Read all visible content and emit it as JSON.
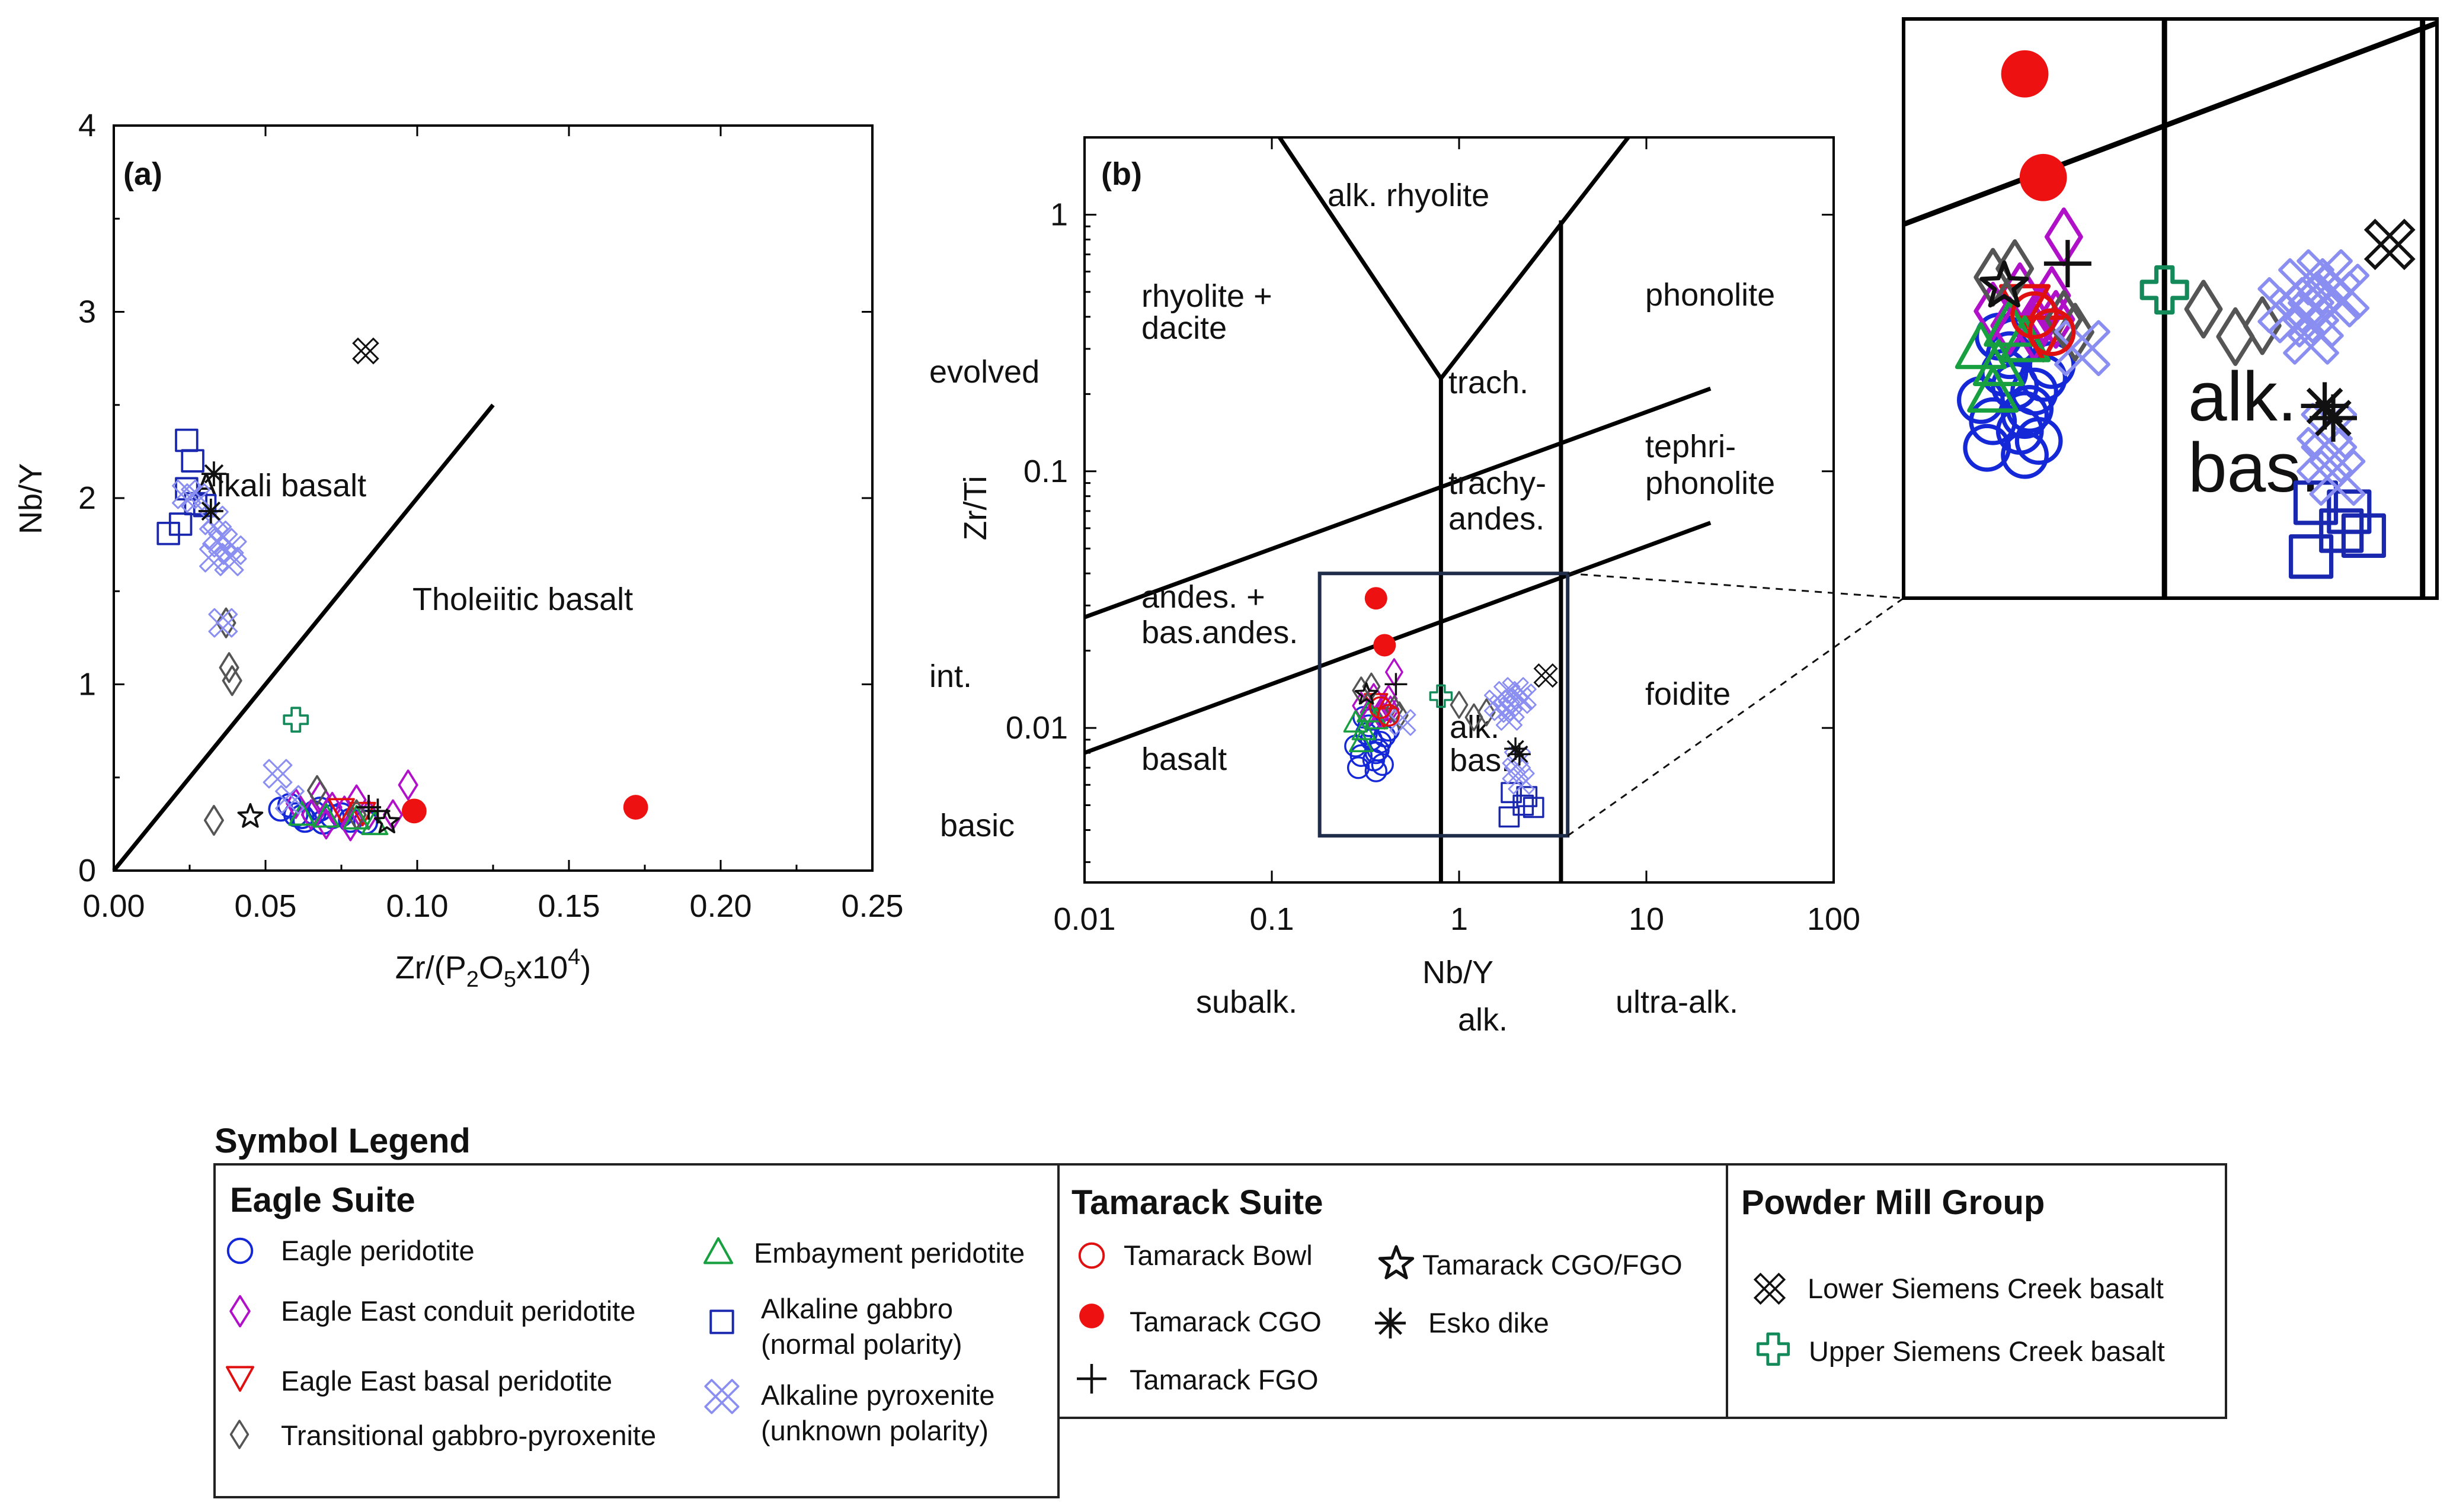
{
  "colors": {
    "eagle_peridotite": "#1428d8",
    "eagle_east_conduit": "#b010c8",
    "eagle_east_basal": "#e01010",
    "transitional": "#555555",
    "embayment": "#18a040",
    "alk_gabbro": "#1a28b0",
    "alk_pyroxenite": "#8a8ef0",
    "tamarack_bowl": "#e01010",
    "tamarack_cgo": "#ee1111",
    "black": "#111111",
    "upper_siemens": "#148a5a",
    "inset_box": "#1f2d4a"
  },
  "chart_data": [
    {
      "panel": "(a)",
      "type": "scatter",
      "xlabel": "Zr/(P2O5x10^4)",
      "ylabel": "Nb/Y",
      "xlim": [
        0,
        0.25
      ],
      "ylim": [
        0,
        4
      ],
      "xticks": [
        "0.00",
        "0.05",
        "0.10",
        "0.15",
        "0.20",
        "0.25"
      ],
      "yticks": [
        "0",
        "1",
        "2",
        "3",
        "4"
      ],
      "divider_line": [
        [
          0,
          0
        ],
        [
          0.125,
          2.5
        ]
      ],
      "region_labels": [
        "Alkali basalt",
        "Tholeiitic basalt"
      ],
      "series": [
        {
          "name": "Eagle peridotite",
          "marker": "circle",
          "points": [
            [
              0.055,
              0.33
            ],
            [
              0.06,
              0.3
            ],
            [
              0.063,
              0.27
            ],
            [
              0.066,
              0.31
            ],
            [
              0.069,
              0.26
            ],
            [
              0.072,
              0.29
            ],
            [
              0.075,
              0.3
            ],
            [
              0.078,
              0.27
            ],
            [
              0.083,
              0.26
            ],
            [
              0.058,
              0.35
            ],
            [
              0.068,
              0.33
            ],
            [
              0.062,
              0.29
            ]
          ]
        },
        {
          "name": "Eagle East conduit peridotite",
          "marker": "diamond",
          "points": [
            [
              0.06,
              0.36
            ],
            [
              0.065,
              0.3
            ],
            [
              0.068,
              0.4
            ],
            [
              0.072,
              0.34
            ],
            [
              0.076,
              0.32
            ],
            [
              0.08,
              0.38
            ],
            [
              0.084,
              0.3
            ],
            [
              0.092,
              0.3
            ],
            [
              0.097,
              0.46
            ],
            [
              0.07,
              0.25
            ],
            [
              0.078,
              0.24
            ]
          ]
        },
        {
          "name": "Eagle East basal peridotite",
          "marker": "triangle-down",
          "points": [
            [
              0.075,
              0.33
            ],
            [
              0.082,
              0.31
            ]
          ]
        },
        {
          "name": "Transitional gabbro-pyroxenite",
          "marker": "diamond",
          "points": [
            [
              0.033,
              0.27
            ],
            [
              0.037,
              1.33
            ],
            [
              0.038,
              1.09
            ],
            [
              0.039,
              1.02
            ],
            [
              0.067,
              0.43
            ],
            [
              0.08,
              0.3
            ]
          ]
        },
        {
          "name": "Embayment peridotite",
          "marker": "triangle",
          "points": [
            [
              0.062,
              0.3
            ],
            [
              0.07,
              0.29
            ],
            [
              0.08,
              0.28
            ],
            [
              0.086,
              0.25
            ]
          ]
        },
        {
          "name": "Alkaline gabbro (normal polarity)",
          "marker": "square",
          "points": [
            [
              0.024,
              2.31
            ],
            [
              0.026,
              2.2
            ],
            [
              0.024,
              2.05
            ],
            [
              0.027,
              1.97
            ],
            [
              0.018,
              1.81
            ],
            [
              0.022,
              1.86
            ],
            [
              0.03,
              1.96
            ]
          ]
        },
        {
          "name": "Alkaline pyroxenite (unknown polarity)",
          "marker": "xfat",
          "points": [
            [
              0.024,
              2.02
            ],
            [
              0.027,
              2.0
            ],
            [
              0.033,
              1.88
            ],
            [
              0.034,
              1.8
            ],
            [
              0.036,
              1.76
            ],
            [
              0.039,
              1.72
            ],
            [
              0.033,
              1.68
            ],
            [
              0.038,
              1.66
            ],
            [
              0.036,
              1.33
            ],
            [
              0.054,
              0.52
            ],
            [
              0.058,
              0.38
            ]
          ]
        },
        {
          "name": "Tamarack CGO",
          "marker": "dot",
          "points": [
            [
              0.099,
              0.32
            ],
            [
              0.172,
              0.34
            ]
          ]
        },
        {
          "name": "Tamarack FGO",
          "marker": "plus",
          "points": [
            [
              0.084,
              0.34
            ],
            [
              0.087,
              0.32
            ]
          ]
        },
        {
          "name": "Tamarack CGO/FGO",
          "marker": "star",
          "points": [
            [
              0.045,
              0.29
            ],
            [
              0.09,
              0.26
            ]
          ]
        },
        {
          "name": "Esko dike",
          "marker": "asterisk",
          "points": [
            [
              0.033,
              2.13
            ],
            [
              0.032,
              1.93
            ]
          ]
        },
        {
          "name": "Lower Siemens Creek basalt",
          "marker": "xbox",
          "points": [
            [
              0.083,
              2.79
            ]
          ]
        },
        {
          "name": "Upper Siemens Creek basalt",
          "marker": "clover",
          "points": [
            [
              0.06,
              0.81
            ]
          ]
        }
      ]
    },
    {
      "panel": "(b)",
      "type": "scatter",
      "xscale": "log",
      "yscale": "log",
      "xlabel": "Nb/Y",
      "ylabel": "Zr/Ti",
      "xlim": [
        0.01,
        100
      ],
      "ylim": [
        0.0025,
        2
      ],
      "xticks": [
        "0.01",
        "0.1",
        "1",
        "10",
        "100"
      ],
      "yticks": [
        "0.01",
        "0.1",
        "1"
      ],
      "classification_lines": [
        [
          [
            0.01,
            0.027
          ],
          [
            22,
            0.21
          ]
        ],
        [
          [
            0.01,
            0.008
          ],
          [
            22,
            0.063
          ]
        ],
        [
          [
            0.8,
            0.0025
          ],
          [
            0.8,
            0.23
          ]
        ],
        [
          [
            3.5,
            0.0025
          ],
          [
            3.5,
            0.95
          ]
        ],
        [
          [
            0.8,
            0.23
          ],
          [
            0.11,
            2
          ]
        ],
        [
          [
            0.8,
            0.23
          ],
          [
            8,
            2
          ]
        ]
      ],
      "field_labels": [
        "alk. rhyolite",
        "rhyolite +",
        "dacite",
        "trach.",
        "trachy-",
        "andes.",
        "phonolite",
        "tephri-",
        "phonolite",
        "andes. +",
        "bas.andes.",
        "basalt",
        "alk.",
        "bas.",
        "foidite"
      ],
      "side_labels": [
        "evolved",
        "int.",
        "basic"
      ],
      "bottom_labels": [
        "subalk.",
        "alk.",
        "ultra-alk."
      ],
      "series": [
        {
          "name": "Eagle peridotite",
          "marker": "circle",
          "points": [
            [
              0.28,
              0.0085
            ],
            [
              0.32,
              0.0095
            ],
            [
              0.34,
              0.009
            ],
            [
              0.36,
              0.008
            ],
            [
              0.3,
              0.0078
            ],
            [
              0.38,
              0.0088
            ],
            [
              0.33,
              0.0102
            ],
            [
              0.35,
              0.0075
            ],
            [
              0.4,
              0.0093
            ],
            [
              0.31,
              0.011
            ],
            [
              0.37,
              0.0082
            ],
            [
              0.42,
              0.0098
            ],
            [
              0.29,
              0.007
            ],
            [
              0.36,
              0.0068
            ],
            [
              0.39,
              0.0072
            ],
            [
              0.34,
              0.0108
            ]
          ]
        },
        {
          "name": "Eagle East conduit peridotite",
          "marker": "diamond",
          "points": [
            [
              0.3,
              0.0122
            ],
            [
              0.35,
              0.0132
            ],
            [
              0.4,
              0.012
            ],
            [
              0.45,
              0.0165
            ],
            [
              0.38,
              0.0112
            ],
            [
              0.42,
              0.013
            ],
            [
              0.33,
              0.0115
            ],
            [
              0.43,
              0.0118
            ]
          ]
        },
        {
          "name": "Eagle East basal peridotite",
          "marker": "triangle-down",
          "points": [
            [
              0.36,
              0.0125
            ],
            [
              0.4,
              0.011
            ]
          ]
        },
        {
          "name": "Transitional gabbro-pyroxenite",
          "marker": "diamond",
          "points": [
            [
              0.3,
              0.014
            ],
            [
              0.34,
              0.0145
            ],
            [
              0.45,
              0.0118
            ],
            [
              0.48,
              0.0112
            ],
            [
              1.0,
              0.0123
            ],
            [
              1.2,
              0.011
            ],
            [
              1.4,
              0.0115
            ]
          ]
        },
        {
          "name": "Embayment peridotite",
          "marker": "triangle",
          "points": [
            [
              0.28,
              0.0105
            ],
            [
              0.31,
              0.0098
            ],
            [
              0.33,
              0.0115
            ],
            [
              0.36,
              0.0108
            ],
            [
              0.3,
              0.0088
            ]
          ]
        },
        {
          "name": "Alkaline gabbro (normal polarity)",
          "marker": "square",
          "points": [
            [
              1.85,
              0.0045
            ],
            [
              2.2,
              0.005
            ],
            [
              2.3,
              0.0054
            ],
            [
              1.9,
              0.0056
            ],
            [
              2.5,
              0.0049
            ]
          ]
        },
        {
          "name": "Alkaline pyroxenite (unknown polarity)",
          "marker": "xfat",
          "points": [
            [
              1.6,
              0.0125
            ],
            [
              1.8,
              0.0135
            ],
            [
              2.0,
              0.014
            ],
            [
              2.1,
              0.0128
            ],
            [
              1.7,
              0.012
            ],
            [
              1.9,
              0.0118
            ],
            [
              2.2,
              0.0132
            ],
            [
              1.85,
              0.011
            ],
            [
              2.05,
              0.0075
            ],
            [
              2.0,
              0.0068
            ],
            [
              2.15,
              0.0062
            ],
            [
              0.5,
              0.0105
            ]
          ]
        },
        {
          "name": "Tamarack Bowl",
          "marker": "circle",
          "points": [
            [
              0.38,
              0.012
            ],
            [
              0.42,
              0.0112
            ]
          ]
        },
        {
          "name": "Tamarack CGO",
          "marker": "dot",
          "points": [
            [
              0.36,
              0.032
            ],
            [
              0.4,
              0.021
            ]
          ]
        },
        {
          "name": "Tamarack FGO",
          "marker": "plus",
          "points": [
            [
              0.46,
              0.0148
            ]
          ]
        },
        {
          "name": "Tamarack CGO/FGO",
          "marker": "star",
          "points": [
            [
              0.32,
              0.0135
            ]
          ]
        },
        {
          "name": "Esko dike",
          "marker": "asterisk",
          "points": [
            [
              2.0,
              0.0083
            ],
            [
              2.1,
              0.0079
            ]
          ]
        },
        {
          "name": "Lower Siemens Creek basalt",
          "marker": "xbox",
          "points": [
            [
              2.9,
              0.016
            ]
          ]
        },
        {
          "name": "Upper Siemens Creek basalt",
          "marker": "clover",
          "points": [
            [
              0.8,
              0.0133
            ]
          ]
        }
      ],
      "inset": {
        "xrange": [
          0.18,
          3.8
        ],
        "yrange": [
          0.0038,
          0.04
        ],
        "zoom_of": "(b)"
      }
    }
  ],
  "legend": {
    "title": "Symbol Legend",
    "groups": [
      {
        "title": "Eagle Suite",
        "items": [
          {
            "label": "Eagle peridotite",
            "marker": "circle",
            "color_key": "eagle_peridotite"
          },
          {
            "label": "Eagle East conduit peridotite",
            "marker": "diamond",
            "color_key": "eagle_east_conduit"
          },
          {
            "label": "Eagle East basal peridotite",
            "marker": "triangle-down",
            "color_key": "eagle_east_basal"
          },
          {
            "label": "Transitional gabbro-pyroxenite",
            "marker": "diamond",
            "color_key": "transitional"
          },
          {
            "label": "Embayment peridotite",
            "marker": "triangle",
            "color_key": "embayment"
          },
          {
            "label": "Alkaline gabbro",
            "label2": "(normal polarity)",
            "marker": "square",
            "color_key": "alk_gabbro"
          },
          {
            "label": "Alkaline pyroxenite",
            "label2": "(unknown polarity)",
            "marker": "xfat",
            "color_key": "alk_pyroxenite"
          }
        ]
      },
      {
        "title": "Tamarack Suite",
        "items": [
          {
            "label": "Tamarack Bowl",
            "marker": "circle",
            "color_key": "tamarack_bowl"
          },
          {
            "label": "Tamarack CGO",
            "marker": "dot",
            "color_key": "tamarack_cgo"
          },
          {
            "label": "Tamarack FGO",
            "marker": "plus",
            "color_key": "black"
          },
          {
            "label": "Tamarack CGO/FGO",
            "marker": "star",
            "color_key": "black"
          },
          {
            "label": "Esko dike",
            "marker": "asterisk",
            "color_key": "black"
          }
        ]
      },
      {
        "title": "Powder Mill Group",
        "items": [
          {
            "label": "Lower Siemens Creek basalt",
            "marker": "xbox",
            "color_key": "black"
          },
          {
            "label": "Upper Siemens Creek basalt",
            "marker": "clover",
            "color_key": "upper_siemens"
          }
        ]
      }
    ]
  }
}
